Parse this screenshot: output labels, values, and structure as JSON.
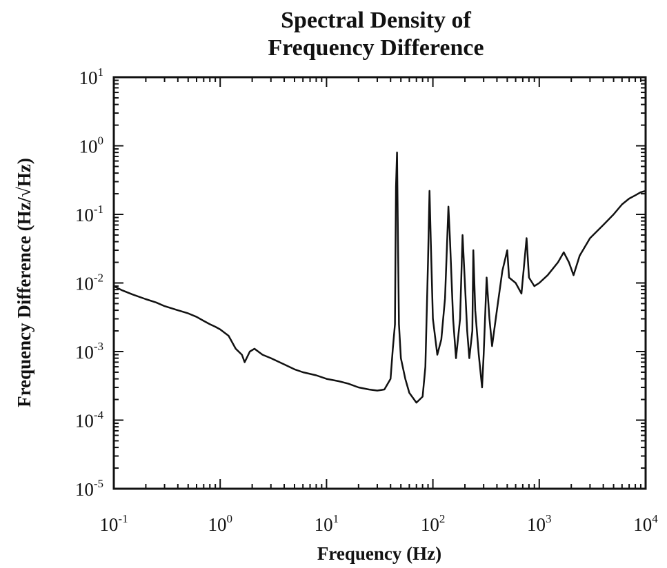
{
  "chart_data": {
    "type": "line",
    "title": [
      "Spectral Density of",
      "Frequency Difference"
    ],
    "xlabel": "Frequency (Hz)",
    "ylabel": "Frequency Difference (Hz/√Hz)",
    "x_scale": "log",
    "y_scale": "log",
    "xlim": [
      0.1,
      10000
    ],
    "ylim": [
      1e-05,
      10
    ],
    "grid": false,
    "x_ticks": [
      {
        "base": "10",
        "exp": "-1",
        "value": 0.1
      },
      {
        "base": "10",
        "exp": "0",
        "value": 1
      },
      {
        "base": "10",
        "exp": "1",
        "value": 10
      },
      {
        "base": "10",
        "exp": "2",
        "value": 100
      },
      {
        "base": "10",
        "exp": "3",
        "value": 1000
      },
      {
        "base": "10",
        "exp": "4",
        "value": 10000
      }
    ],
    "y_ticks": [
      {
        "base": "10",
        "exp": "1",
        "value": 10
      },
      {
        "base": "10",
        "exp": "0",
        "value": 1
      },
      {
        "base": "10",
        "exp": "-1",
        "value": 0.1
      },
      {
        "base": "10",
        "exp": "-2",
        "value": 0.01
      },
      {
        "base": "10",
        "exp": "-3",
        "value": 0.001
      },
      {
        "base": "10",
        "exp": "-4",
        "value": 0.0001
      },
      {
        "base": "10",
        "exp": "-5",
        "value": 1e-05
      }
    ],
    "series": [
      {
        "color": "#111111",
        "points": [
          [
            0.1,
            0.009
          ],
          [
            0.12,
            0.0078
          ],
          [
            0.15,
            0.0068
          ],
          [
            0.2,
            0.0058
          ],
          [
            0.25,
            0.0052
          ],
          [
            0.3,
            0.0046
          ],
          [
            0.4,
            0.004
          ],
          [
            0.5,
            0.0036
          ],
          [
            0.6,
            0.0032
          ],
          [
            0.7,
            0.0028
          ],
          [
            0.8,
            0.0025
          ],
          [
            0.9,
            0.0023
          ],
          [
            1.0,
            0.0021
          ],
          [
            1.2,
            0.0017
          ],
          [
            1.4,
            0.0011
          ],
          [
            1.6,
            0.0009
          ],
          [
            1.7,
            0.0007
          ],
          [
            1.9,
            0.001
          ],
          [
            2.1,
            0.0011
          ],
          [
            2.5,
            0.0009
          ],
          [
            3.0,
            0.0008
          ],
          [
            4.0,
            0.00065
          ],
          [
            5.0,
            0.00055
          ],
          [
            6.0,
            0.0005
          ],
          [
            8.0,
            0.00045
          ],
          [
            10,
            0.0004
          ],
          [
            13,
            0.00037
          ],
          [
            16,
            0.00034
          ],
          [
            20,
            0.0003
          ],
          [
            25,
            0.00028
          ],
          [
            30,
            0.00027
          ],
          [
            35,
            0.00028
          ],
          [
            40,
            0.0004
          ],
          [
            42,
            0.0011
          ],
          [
            44,
            0.0025
          ],
          [
            45,
            0.25
          ],
          [
            46,
            0.8
          ],
          [
            47,
            0.04
          ],
          [
            48,
            0.0025
          ],
          [
            50,
            0.0008
          ],
          [
            55,
            0.0004
          ],
          [
            60,
            0.00025
          ],
          [
            70,
            0.00018
          ],
          [
            80,
            0.00022
          ],
          [
            85,
            0.0006
          ],
          [
            90,
            0.02
          ],
          [
            93,
            0.22
          ],
          [
            96,
            0.03
          ],
          [
            100,
            0.003
          ],
          [
            110,
            0.0009
          ],
          [
            120,
            0.0015
          ],
          [
            130,
            0.006
          ],
          [
            140,
            0.13
          ],
          [
            145,
            0.04
          ],
          [
            155,
            0.003
          ],
          [
            165,
            0.0008
          ],
          [
            180,
            0.003
          ],
          [
            190,
            0.05
          ],
          [
            200,
            0.01
          ],
          [
            210,
            0.002
          ],
          [
            220,
            0.0008
          ],
          [
            235,
            0.002
          ],
          [
            240,
            0.03
          ],
          [
            250,
            0.004
          ],
          [
            270,
            0.0009
          ],
          [
            290,
            0.0003
          ],
          [
            300,
            0.0009
          ],
          [
            320,
            0.012
          ],
          [
            340,
            0.003
          ],
          [
            360,
            0.0012
          ],
          [
            400,
            0.004
          ],
          [
            450,
            0.015
          ],
          [
            500,
            0.03
          ],
          [
            520,
            0.012
          ],
          [
            600,
            0.01
          ],
          [
            680,
            0.007
          ],
          [
            760,
            0.045
          ],
          [
            800,
            0.012
          ],
          [
            900,
            0.009
          ],
          [
            1000,
            0.01
          ],
          [
            1200,
            0.013
          ],
          [
            1500,
            0.02
          ],
          [
            1700,
            0.028
          ],
          [
            1900,
            0.02
          ],
          [
            2100,
            0.013
          ],
          [
            2400,
            0.025
          ],
          [
            3000,
            0.045
          ],
          [
            4000,
            0.07
          ],
          [
            5000,
            0.1
          ],
          [
            6000,
            0.14
          ],
          [
            7000,
            0.17
          ],
          [
            8000,
            0.19
          ],
          [
            9000,
            0.21
          ],
          [
            10000,
            0.22
          ]
        ]
      }
    ]
  }
}
